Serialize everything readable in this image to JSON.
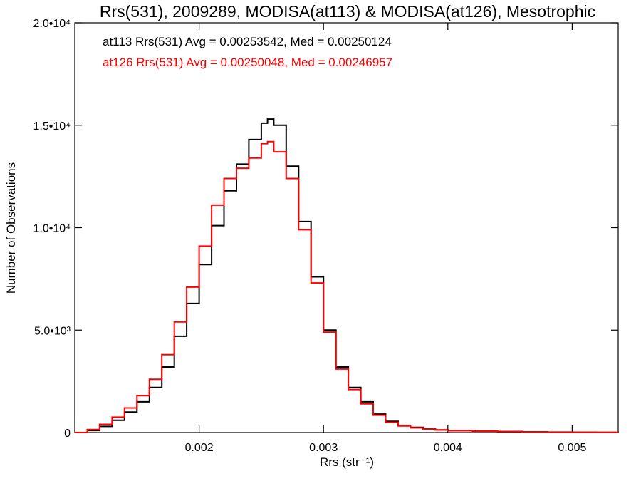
{
  "chart_data": {
    "type": "line",
    "title": "Rrs(531), 2009289, MODISA(at113) & MODISA(at126), Mesotrophic",
    "xlabel": "Rrs (str⁻¹)",
    "ylabel": "Number of Observations",
    "xlim": [
      0.001,
      0.00537
    ],
    "ylim": [
      0,
      20000
    ],
    "x_ticks": [
      {
        "value": 0.002,
        "label": "0.002"
      },
      {
        "value": 0.003,
        "label": "0.003"
      },
      {
        "value": 0.004,
        "label": "0.004"
      },
      {
        "value": 0.005,
        "label": "0.005"
      }
    ],
    "y_ticks": [
      {
        "value": 0,
        "label": "0"
      },
      {
        "value": 5000,
        "label": "5.0•10³"
      },
      {
        "value": 10000,
        "label": "1.0•10⁴"
      },
      {
        "value": 15000,
        "label": "1.5•10⁴"
      },
      {
        "value": 20000,
        "label": "2.0•10⁴"
      }
    ],
    "grid": false,
    "legend_placement": "top-left",
    "annotations": [
      {
        "text": "at113 Rrs(531) Avg = 0.00253542, Med = 0.00250124",
        "color": "#000000"
      },
      {
        "text": "at126 Rrs(531) Avg = 0.00250048, Med = 0.00246957",
        "color": "#ff0000"
      }
    ],
    "series": [
      {
        "color": "#000000",
        "x": [
          0.001,
          0.0011,
          0.0012,
          0.0013,
          0.0014,
          0.0015,
          0.0016,
          0.0017,
          0.0018,
          0.0019,
          0.002,
          0.0021,
          0.0022,
          0.0023,
          0.0024,
          0.0025,
          0.00255,
          0.0026,
          0.0027,
          0.0028,
          0.0029,
          0.003,
          0.0031,
          0.0032,
          0.0033,
          0.0034,
          0.0035,
          0.0036,
          0.0037,
          0.0038,
          0.0039,
          0.004,
          0.0042,
          0.0044,
          0.0046,
          0.0048,
          0.005,
          0.0052,
          0.00537
        ],
        "y": [
          0,
          100,
          300,
          600,
          1000,
          1500,
          2200,
          3200,
          4700,
          6300,
          8200,
          10100,
          11800,
          13100,
          14300,
          15100,
          15300,
          15000,
          13000,
          10300,
          7600,
          5000,
          3200,
          2200,
          1500,
          900,
          550,
          350,
          250,
          180,
          130,
          100,
          80,
          50,
          30,
          20,
          15,
          8,
          5
        ]
      },
      {
        "color": "#ff0000",
        "x": [
          0.001,
          0.0011,
          0.0012,
          0.0013,
          0.0014,
          0.0015,
          0.0016,
          0.0017,
          0.0018,
          0.0019,
          0.002,
          0.0021,
          0.0022,
          0.0023,
          0.0024,
          0.0025,
          0.00255,
          0.0026,
          0.0027,
          0.0028,
          0.0029,
          0.003,
          0.0031,
          0.0032,
          0.0033,
          0.0034,
          0.0035,
          0.0036,
          0.0037,
          0.0038,
          0.0039,
          0.004,
          0.0042,
          0.0044,
          0.0046,
          0.0048,
          0.005,
          0.0052,
          0.00537
        ],
        "y": [
          0,
          150,
          400,
          750,
          1200,
          1800,
          2600,
          3800,
          5400,
          7100,
          9100,
          11100,
          12400,
          12900,
          13400,
          14100,
          14200,
          13700,
          12400,
          9900,
          7300,
          4900,
          3100,
          2100,
          1400,
          850,
          500,
          320,
          230,
          170,
          120,
          90,
          70,
          45,
          28,
          18,
          12,
          7,
          5
        ]
      }
    ]
  }
}
